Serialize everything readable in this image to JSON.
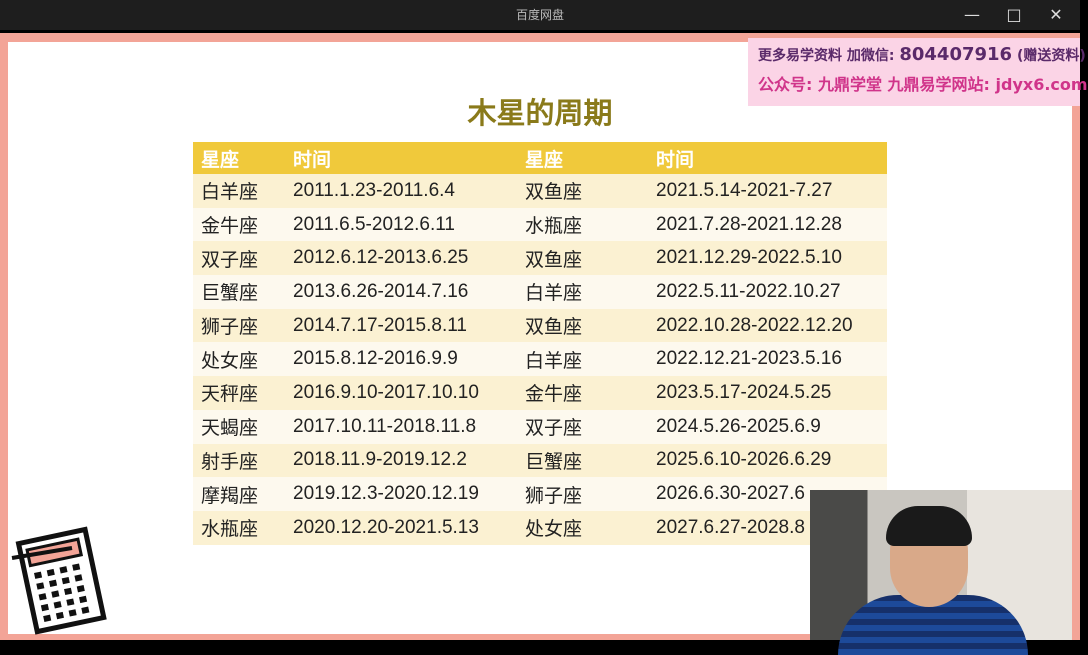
{
  "window": {
    "title": "百度网盘"
  },
  "slide": {
    "title": "木星的周期",
    "headers": [
      "星座",
      "时间",
      "星座",
      "时间"
    ],
    "rows": [
      [
        "白羊座",
        "2011.1.23-2011.6.4",
        "双鱼座",
        "2021.5.14-2021-7.27"
      ],
      [
        "金牛座",
        "2011.6.5-2012.6.11",
        "水瓶座",
        "2021.7.28-2021.12.28"
      ],
      [
        "双子座",
        "2012.6.12-2013.6.25",
        "双鱼座",
        "2021.12.29-2022.5.10"
      ],
      [
        "巨蟹座",
        "2013.6.26-2014.7.16",
        "白羊座",
        "2022.5.11-2022.10.27"
      ],
      [
        "狮子座",
        "2014.7.17-2015.8.11",
        "双鱼座",
        "2022.10.28-2022.12.20"
      ],
      [
        "处女座",
        "2015.8.12-2016.9.9",
        "白羊座",
        "2022.12.21-2023.5.16"
      ],
      [
        "天秤座",
        "2016.9.10-2017.10.10",
        "金牛座",
        "2023.5.17-2024.5.25"
      ],
      [
        "天蝎座",
        "2017.10.11-2018.11.8",
        "双子座",
        "2024.5.26-2025.6.9"
      ],
      [
        "射手座",
        "2018.11.9-2019.12.2",
        "巨蟹座",
        "2025.6.10-2026.6.29"
      ],
      [
        "摩羯座",
        "2019.12.3-2020.12.19",
        "狮子座",
        "2026.6.30-2027.6"
      ],
      [
        "水瓶座",
        "2020.12.20-2021.5.13",
        "处女座",
        "2027.6.27-2028.8"
      ]
    ]
  },
  "ad": {
    "line1_prefix": "更多易学资料 加微信:",
    "wechat": "804407916",
    "line1_suffix": "(赠送资料)",
    "line2": "公众号: 九鼎学堂 九鼎易学网站: jdyx6.com"
  }
}
